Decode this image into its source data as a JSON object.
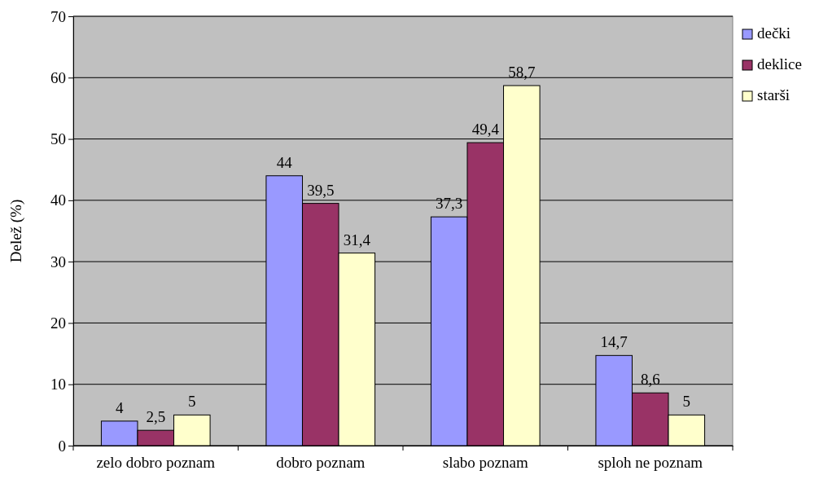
{
  "chart_data": {
    "type": "bar",
    "ylabel": "Delež (%)",
    "categories": [
      "zelo dobro poznam",
      "dobro poznam",
      "slabo poznam",
      "sploh ne poznam"
    ],
    "series": [
      {
        "name": "dečki",
        "color": "#9999ff",
        "values": [
          4,
          44,
          37.3,
          14.7
        ],
        "value_labels": [
          "4",
          "44",
          "37,3",
          "14,7"
        ]
      },
      {
        "name": "deklice",
        "color": "#993366",
        "values": [
          2.5,
          39.5,
          49.4,
          8.6
        ],
        "value_labels": [
          "2,5",
          "39,5",
          "49,4",
          "8,6"
        ]
      },
      {
        "name": "starši",
        "color": "#ffffcc",
        "values": [
          5,
          31.4,
          58.7,
          5
        ],
        "value_labels": [
          "5",
          "31,4",
          "58,7",
          "5"
        ]
      }
    ],
    "ylim": [
      0,
      70
    ],
    "yticks": [
      0,
      10,
      20,
      30,
      40,
      50,
      60,
      70
    ],
    "grid": "y",
    "legend": "right"
  }
}
